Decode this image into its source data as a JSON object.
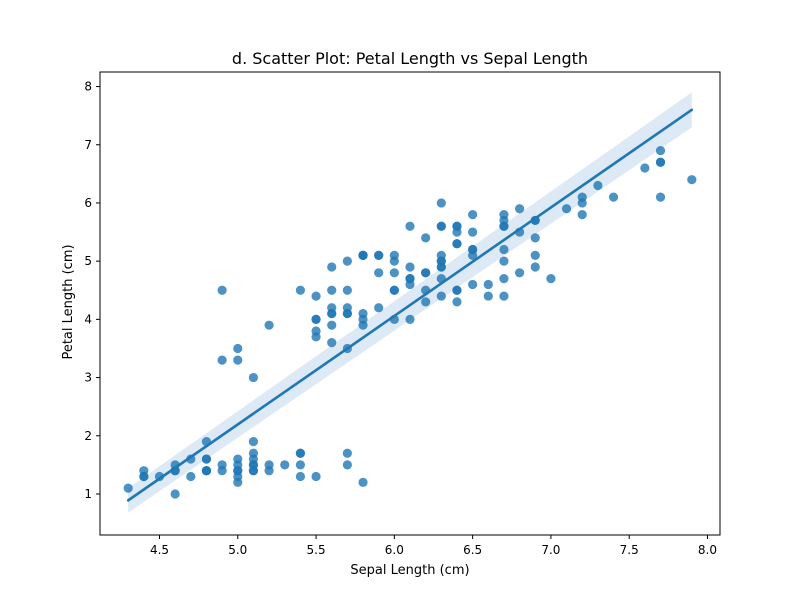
{
  "colors": {
    "points": "#1f77b4",
    "line": "#1f77b4",
    "band": "#c6dbef"
  },
  "chart_data": {
    "type": "scatter",
    "title": "d. Scatter Plot: Petal Length vs Sepal Length",
    "xlabel": "Sepal Length (cm)",
    "ylabel": "Petal Length (cm)",
    "xlim": [
      4.12,
      8.08
    ],
    "ylim": [
      0.295,
      8.25
    ],
    "xticks": [
      4.5,
      5.0,
      5.5,
      6.0,
      6.5,
      7.0,
      7.5,
      8.0
    ],
    "xtick_labels": [
      "4.5",
      "5.0",
      "5.5",
      "6.0",
      "6.5",
      "7.0",
      "7.5",
      "8.0"
    ],
    "yticks": [
      1,
      2,
      3,
      4,
      5,
      6,
      7,
      8
    ],
    "ytick_labels": [
      "1",
      "2",
      "3",
      "4",
      "5",
      "6",
      "7",
      "8"
    ],
    "grid": false,
    "legend": false,
    "regression": {
      "x": [
        4.3,
        7.9
      ],
      "y": [
        0.89,
        7.6
      ],
      "ci_lower": [
        0.68,
        7.3
      ],
      "ci_upper": [
        1.1,
        7.9
      ]
    },
    "points": {
      "x": [
        4.3,
        4.4,
        4.4,
        4.4,
        4.5,
        4.6,
        4.6,
        4.6,
        4.6,
        4.7,
        4.7,
        4.8,
        4.8,
        4.8,
        4.8,
        4.8,
        4.9,
        4.9,
        4.9,
        4.9,
        5.0,
        5.0,
        5.0,
        5.0,
        5.0,
        5.0,
        5.0,
        5.0,
        5.1,
        5.1,
        5.1,
        5.1,
        5.1,
        5.1,
        5.1,
        5.1,
        5.2,
        5.2,
        5.2,
        5.3,
        5.4,
        5.4,
        5.4,
        5.4,
        5.4,
        5.5,
        5.5,
        5.5,
        5.5,
        5.5,
        5.6,
        5.6,
        5.6,
        5.6,
        5.6,
        5.6,
        5.7,
        5.7,
        5.7,
        5.7,
        5.7,
        5.7,
        5.8,
        5.8,
        5.8,
        5.8,
        5.8,
        5.9,
        5.9,
        5.9,
        6.0,
        6.0,
        6.0,
        6.0,
        6.0,
        6.1,
        6.1,
        6.1,
        6.1,
        6.1,
        6.2,
        6.2,
        6.2,
        6.2,
        6.3,
        6.3,
        6.3,
        6.3,
        6.3,
        6.3,
        6.3,
        6.3,
        6.3,
        6.4,
        6.4,
        6.4,
        6.4,
        6.4,
        6.4,
        6.5,
        6.5,
        6.5,
        6.5,
        6.5,
        6.6,
        6.6,
        6.7,
        6.7,
        6.7,
        6.7,
        6.7,
        6.7,
        6.7,
        6.8,
        6.8,
        6.8,
        6.9,
        6.9,
        6.9,
        6.9,
        7.0,
        7.1,
        7.2,
        7.2,
        7.2,
        7.3,
        7.4,
        7.6,
        7.7,
        7.7,
        7.7,
        7.7,
        7.9,
        5.7,
        6.4,
        6.9,
        5.6,
        5.8,
        6.7,
        5.9,
        6.0,
        6.1,
        6.3,
        6.5,
        6.2,
        5.8,
        6.4,
        5.7,
        5.5,
        4.8
      ],
      "y": [
        1.1,
        1.4,
        1.3,
        1.3,
        1.3,
        1.5,
        1.4,
        1.4,
        1.0,
        1.6,
        1.3,
        1.9,
        1.6,
        1.4,
        1.6,
        1.4,
        1.5,
        1.4,
        4.5,
        3.3,
        1.6,
        1.5,
        1.4,
        1.3,
        1.2,
        3.5,
        3.3,
        1.4,
        1.5,
        1.4,
        1.7,
        1.9,
        1.6,
        1.5,
        3.0,
        1.4,
        1.5,
        1.4,
        3.9,
        1.5,
        1.7,
        1.5,
        1.3,
        4.5,
        1.7,
        1.3,
        4.0,
        3.8,
        3.7,
        4.4,
        4.5,
        4.1,
        3.6,
        3.9,
        4.2,
        4.9,
        1.7,
        1.5,
        4.2,
        3.5,
        5.0,
        4.5,
        1.2,
        5.1,
        4.0,
        3.9,
        5.1,
        4.8,
        4.2,
        5.1,
        4.5,
        5.1,
        4.0,
        4.8,
        5.0,
        4.7,
        4.9,
        5.6,
        4.6,
        4.0,
        4.5,
        4.3,
        5.4,
        4.8,
        6.0,
        5.6,
        4.9,
        4.7,
        4.4,
        5.1,
        5.6,
        5.0,
        4.9,
        5.3,
        4.3,
        5.5,
        5.6,
        4.5,
        5.3,
        5.8,
        4.6,
        5.5,
        5.1,
        5.2,
        4.6,
        4.4,
        5.6,
        5.7,
        5.8,
        4.4,
        4.7,
        5.2,
        5.0,
        5.5,
        5.9,
        4.8,
        5.7,
        4.9,
        5.1,
        5.4,
        4.7,
        5.9,
        6.1,
        6.0,
        5.8,
        6.3,
        6.1,
        6.6,
        6.7,
        6.9,
        6.1,
        6.7,
        6.4,
        4.1,
        4.5,
        5.7,
        4.1,
        4.1,
        5.6,
        5.1,
        4.5,
        4.7,
        5.0,
        5.2,
        4.8,
        5.1,
        5.6,
        4.1,
        4.0,
        1.4
      ]
    }
  }
}
